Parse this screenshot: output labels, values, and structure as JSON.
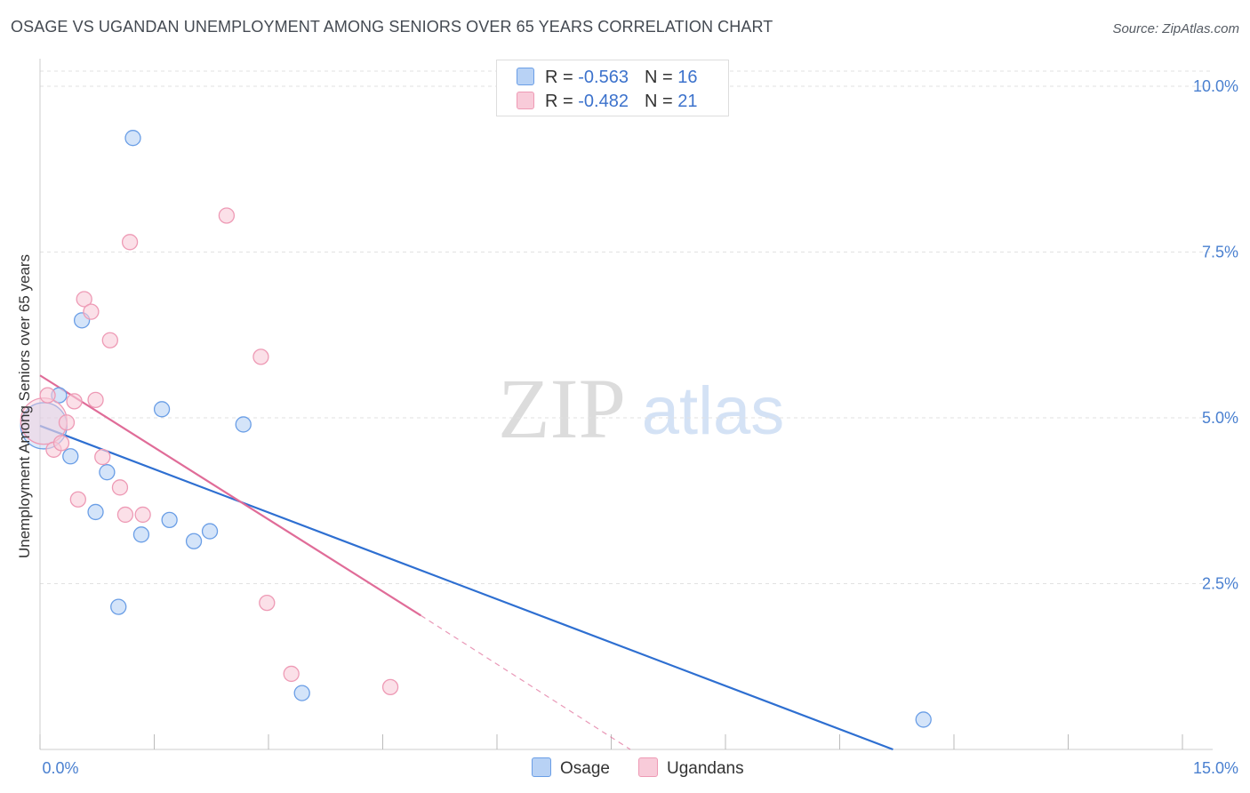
{
  "title": "OSAGE VS UGANDAN UNEMPLOYMENT AMONG SENIORS OVER 65 YEARS CORRELATION CHART",
  "source": "Source: ZipAtlas.com",
  "watermark": {
    "zip": "ZIP",
    "atlas": "atlas"
  },
  "legend": {
    "osage": {
      "r_label": "R = ",
      "r_value": "-0.563",
      "n_label": "N = ",
      "n_value": "16"
    },
    "ugandans": {
      "r_label": "R = ",
      "r_value": "-0.482",
      "n_label": "N = ",
      "n_value": "21"
    }
  },
  "chart_data": {
    "type": "scatter",
    "title": "OSAGE VS UGANDAN UNEMPLOYMENT AMONG SENIORS OVER 65 YEARS CORRELATION CHART",
    "xlabel": "",
    "ylabel": "Unemployment Among Seniors over 65 years",
    "xlim": [
      0,
      15
    ],
    "ylim": [
      0,
      10
    ],
    "x_tick_labels": [
      "0.0%",
      "15.0%"
    ],
    "y_ticks": [
      {
        "value": 2.5,
        "label": "2.5%"
      },
      {
        "value": 5.0,
        "label": "5.0%"
      },
      {
        "value": 7.5,
        "label": "7.5%"
      },
      {
        "value": 10.0,
        "label": "10.0%"
      }
    ],
    "grid": true,
    "legend_position": "top-center",
    "series": [
      {
        "name": "Osage",
        "color": "#6a9ee6",
        "fill": "#b8d2f5",
        "line_color": "#2e6fd1",
        "points": [
          {
            "x": 0.05,
            "y": 4.88,
            "large": true
          },
          {
            "x": 0.25,
            "y": 5.34
          },
          {
            "x": 0.4,
            "y": 4.42
          },
          {
            "x": 0.55,
            "y": 6.47
          },
          {
            "x": 0.73,
            "y": 3.58
          },
          {
            "x": 0.88,
            "y": 4.18
          },
          {
            "x": 1.03,
            "y": 2.15
          },
          {
            "x": 1.22,
            "y": 9.22
          },
          {
            "x": 1.33,
            "y": 3.24
          },
          {
            "x": 1.6,
            "y": 5.13
          },
          {
            "x": 1.7,
            "y": 3.46
          },
          {
            "x": 2.02,
            "y": 3.14
          },
          {
            "x": 2.23,
            "y": 3.29
          },
          {
            "x": 2.67,
            "y": 4.9
          },
          {
            "x": 3.44,
            "y": 0.85
          },
          {
            "x": 11.6,
            "y": 0.45
          }
        ],
        "trend": {
          "x0": 0,
          "y0": 4.88,
          "x1": 11.2,
          "y1": 0.0
        }
      },
      {
        "name": "Ugandans",
        "color": "#ee9ab5",
        "fill": "#f8cbd9",
        "line_color": "#e06c98",
        "points": [
          {
            "x": 0.05,
            "y": 4.95,
            "large": true
          },
          {
            "x": 0.1,
            "y": 5.34
          },
          {
            "x": 0.18,
            "y": 4.52
          },
          {
            "x": 0.28,
            "y": 4.62
          },
          {
            "x": 0.35,
            "y": 4.93
          },
          {
            "x": 0.45,
            "y": 5.25
          },
          {
            "x": 0.5,
            "y": 3.77
          },
          {
            "x": 0.58,
            "y": 6.79
          },
          {
            "x": 0.67,
            "y": 6.6
          },
          {
            "x": 0.73,
            "y": 5.27
          },
          {
            "x": 0.82,
            "y": 4.41
          },
          {
            "x": 0.92,
            "y": 6.17
          },
          {
            "x": 1.05,
            "y": 3.95
          },
          {
            "x": 1.12,
            "y": 3.54
          },
          {
            "x": 1.18,
            "y": 7.65
          },
          {
            "x": 1.35,
            "y": 3.54
          },
          {
            "x": 2.45,
            "y": 8.05
          },
          {
            "x": 2.9,
            "y": 5.92
          },
          {
            "x": 2.98,
            "y": 2.21
          },
          {
            "x": 3.3,
            "y": 1.14
          },
          {
            "x": 4.6,
            "y": 0.94
          }
        ],
        "trend": {
          "x0": 0,
          "y0": 5.64,
          "x1": 5.0,
          "y1": 2.02
        },
        "trend_dashed": {
          "x0": 5.0,
          "y0": 2.02,
          "x1": 7.75,
          "y1": 0.0
        }
      }
    ]
  }
}
